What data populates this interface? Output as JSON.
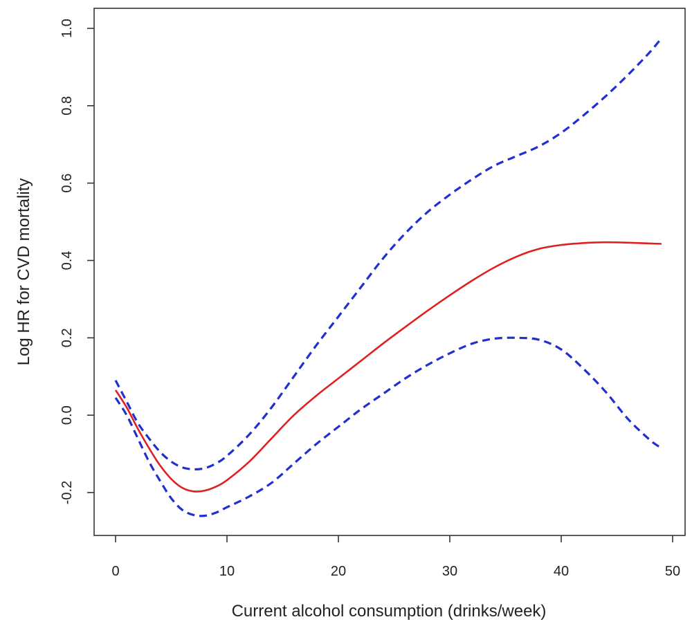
{
  "chart_data": {
    "type": "line",
    "title": "",
    "xlabel": "Current alcohol consumption (drinks/week)",
    "ylabel": "Log HR for CVD mortality",
    "xlim": [
      0,
      50
    ],
    "ylim": [
      -0.2,
      1.0
    ],
    "xticks": [
      0,
      10,
      20,
      30,
      40,
      50
    ],
    "yticks": [
      -0.2,
      0.0,
      0.2,
      0.4,
      0.6,
      0.8,
      1.0
    ],
    "xtick_labels": [
      "0",
      "10",
      "20",
      "30",
      "40",
      "50"
    ],
    "ytick_labels": [
      "-0.2",
      "0.0",
      "0.2",
      "0.4",
      "0.6",
      "0.8",
      "1.0"
    ],
    "grid": false,
    "legend": "none",
    "series": [
      {
        "role": "estimate",
        "color": "#e02020",
        "style": "solid",
        "x": [
          0,
          1,
          2,
          3,
          4,
          5,
          6,
          7,
          8,
          9,
          10,
          12,
          14,
          16,
          18,
          20,
          22,
          24,
          26,
          28,
          30,
          32,
          34,
          36,
          38,
          40,
          42,
          44,
          46,
          48,
          49
        ],
        "y": [
          0.065,
          0.02,
          -0.035,
          -0.085,
          -0.13,
          -0.165,
          -0.188,
          -0.197,
          -0.195,
          -0.185,
          -0.168,
          -0.12,
          -0.06,
          0.0,
          0.05,
          0.095,
          0.14,
          0.185,
          0.228,
          0.27,
          0.31,
          0.348,
          0.382,
          0.41,
          0.43,
          0.44,
          0.445,
          0.447,
          0.446,
          0.444,
          0.443
        ]
      },
      {
        "role": "upper-95ci",
        "color": "#2030d0",
        "style": "dashed",
        "x": [
          0,
          1,
          2,
          3,
          4,
          5,
          6,
          7,
          8,
          9,
          10,
          12,
          14,
          16,
          18,
          20,
          22,
          24,
          26,
          28,
          30,
          32,
          34,
          36,
          38,
          40,
          42,
          44,
          46,
          48,
          49
        ],
        "y": [
          0.09,
          0.035,
          -0.02,
          -0.06,
          -0.095,
          -0.12,
          -0.135,
          -0.14,
          -0.137,
          -0.125,
          -0.105,
          -0.05,
          0.02,
          0.1,
          0.18,
          0.255,
          0.33,
          0.405,
          0.47,
          0.525,
          0.57,
          0.61,
          0.645,
          0.67,
          0.695,
          0.73,
          0.775,
          0.825,
          0.88,
          0.94,
          0.975
        ]
      },
      {
        "role": "lower-95ci",
        "color": "#2030d0",
        "style": "dashed",
        "x": [
          0,
          1,
          2,
          3,
          4,
          5,
          6,
          7,
          8,
          9,
          10,
          12,
          14,
          16,
          18,
          20,
          22,
          24,
          26,
          28,
          30,
          32,
          34,
          36,
          38,
          40,
          42,
          44,
          46,
          48,
          49
        ],
        "y": [
          0.045,
          0.0,
          -0.06,
          -0.12,
          -0.17,
          -0.215,
          -0.245,
          -0.258,
          -0.26,
          -0.252,
          -0.238,
          -0.21,
          -0.175,
          -0.125,
          -0.075,
          -0.03,
          0.015,
          0.055,
          0.095,
          0.13,
          0.16,
          0.185,
          0.198,
          0.2,
          0.195,
          0.17,
          0.12,
          0.06,
          -0.01,
          -0.065,
          -0.085
        ]
      }
    ]
  }
}
